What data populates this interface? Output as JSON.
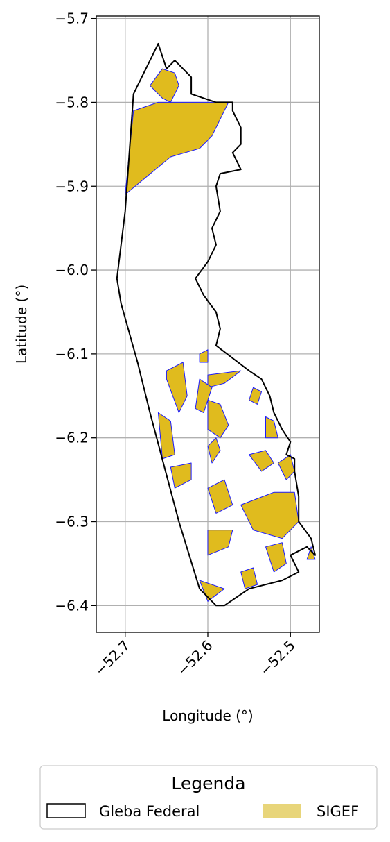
{
  "chart_data": {
    "type": "map",
    "xlabel": "Longitude (°)",
    "ylabel": "Latitude (°)",
    "xlim": [
      -52.735,
      -52.465
    ],
    "ylim": [
      -6.432,
      -5.697
    ],
    "xticks": [
      {
        "value": -52.7,
        "label": "−52.7"
      },
      {
        "value": -52.6,
        "label": "−52.6"
      },
      {
        "value": -52.5,
        "label": "−52.5"
      }
    ],
    "yticks": [
      {
        "value": -5.7,
        "label": "−5.7"
      },
      {
        "value": -5.8,
        "label": "−5.8"
      },
      {
        "value": -5.9,
        "label": "−5.9"
      },
      {
        "value": -6.0,
        "label": "−6.0"
      },
      {
        "value": -6.1,
        "label": "−6.1"
      },
      {
        "value": -6.2,
        "label": "−6.2"
      },
      {
        "value": -6.3,
        "label": "−6.3"
      },
      {
        "value": -6.4,
        "label": "−6.4"
      }
    ],
    "grid": true,
    "legend": {
      "title": "Legenda",
      "placement": "bottom-center",
      "entries": [
        {
          "label": "Gleba Federal",
          "style": "outline",
          "edge": "#000000",
          "fill": "#ffffff"
        },
        {
          "label": "SIGEF",
          "style": "filled",
          "fill": "#e8d57a"
        }
      ]
    },
    "colors": {
      "sigef_fill": "#e0bb1e",
      "sigef_edge": "#1a1aff",
      "boundary": "#000000",
      "grid": "#b0b0b0"
    },
    "layers": [
      {
        "name": "Gleba Federal",
        "type": "polygon-outline",
        "coordinates": [
          [
            -52.66,
            -5.73
          ],
          [
            -52.65,
            -5.76
          ],
          [
            -52.64,
            -5.75
          ],
          [
            -52.63,
            -5.76
          ],
          [
            -52.62,
            -5.77
          ],
          [
            -52.62,
            -5.79
          ],
          [
            -52.59,
            -5.8
          ],
          [
            -52.57,
            -5.8
          ],
          [
            -52.57,
            -5.81
          ],
          [
            -52.56,
            -5.83
          ],
          [
            -52.56,
            -5.85
          ],
          [
            -52.57,
            -5.86
          ],
          [
            -52.56,
            -5.88
          ],
          [
            -52.585,
            -5.885
          ],
          [
            -52.59,
            -5.9
          ],
          [
            -52.585,
            -5.93
          ],
          [
            -52.595,
            -5.95
          ],
          [
            -52.59,
            -5.97
          ],
          [
            -52.6,
            -5.99
          ],
          [
            -52.615,
            -6.01
          ],
          [
            -52.605,
            -6.03
          ],
          [
            -52.59,
            -6.05
          ],
          [
            -52.585,
            -6.07
          ],
          [
            -52.59,
            -6.09
          ],
          [
            -52.55,
            -6.12
          ],
          [
            -52.535,
            -6.13
          ],
          [
            -52.525,
            -6.15
          ],
          [
            -52.52,
            -6.17
          ],
          [
            -52.51,
            -6.19
          ],
          [
            -52.5,
            -6.205
          ],
          [
            -52.505,
            -6.22
          ],
          [
            -52.495,
            -6.225
          ],
          [
            -52.495,
            -6.24
          ],
          [
            -52.49,
            -6.27
          ],
          [
            -52.49,
            -6.3
          ],
          [
            -52.475,
            -6.32
          ],
          [
            -52.47,
            -6.34
          ],
          [
            -52.48,
            -6.33
          ],
          [
            -52.5,
            -6.34
          ],
          [
            -52.49,
            -6.36
          ],
          [
            -52.51,
            -6.37
          ],
          [
            -52.55,
            -6.38
          ],
          [
            -52.58,
            -6.4
          ],
          [
            -52.59,
            -6.4
          ],
          [
            -52.61,
            -6.38
          ],
          [
            -52.635,
            -6.3
          ],
          [
            -52.67,
            -6.17
          ],
          [
            -52.685,
            -6.11
          ],
          [
            -52.705,
            -6.04
          ],
          [
            -52.71,
            -6.01
          ],
          [
            -52.7,
            -5.93
          ],
          [
            -52.69,
            -5.79
          ],
          [
            -52.66,
            -5.73
          ]
        ]
      },
      {
        "name": "SIGEF",
        "type": "parcels",
        "parcels": [
          {
            "id": "n1",
            "coordinates": [
              [
                -52.7,
                -5.91
              ],
              [
                -52.69,
                -5.81
              ],
              [
                -52.66,
                -5.8
              ],
              [
                -52.63,
                -5.8
              ],
              [
                -52.6,
                -5.8
              ],
              [
                -52.575,
                -5.8
              ],
              [
                -52.595,
                -5.84
              ],
              [
                -52.61,
                -5.855
              ],
              [
                -52.645,
                -5.865
              ],
              [
                -52.7,
                -5.91
              ]
            ]
          },
          {
            "id": "n2",
            "coordinates": [
              [
                -52.67,
                -5.78
              ],
              [
                -52.655,
                -5.76
              ],
              [
                -52.64,
                -5.765
              ],
              [
                -52.635,
                -5.78
              ],
              [
                -52.645,
                -5.8
              ],
              [
                -52.655,
                -5.795
              ],
              [
                -52.67,
                -5.78
              ]
            ]
          },
          {
            "id": "s1",
            "coordinates": [
              [
                -52.65,
                -6.12
              ],
              [
                -52.63,
                -6.11
              ],
              [
                -52.625,
                -6.15
              ],
              [
                -52.635,
                -6.17
              ],
              [
                -52.65,
                -6.13
              ],
              [
                -52.65,
                -6.12
              ]
            ]
          },
          {
            "id": "s2",
            "coordinates": [
              [
                -52.61,
                -6.1
              ],
              [
                -52.6,
                -6.095
              ],
              [
                -52.6,
                -6.11
              ],
              [
                -52.61,
                -6.11
              ],
              [
                -52.61,
                -6.1
              ]
            ]
          },
          {
            "id": "s3",
            "coordinates": [
              [
                -52.6,
                -6.125
              ],
              [
                -52.56,
                -6.12
              ],
              [
                -52.58,
                -6.135
              ],
              [
                -52.6,
                -6.14
              ],
              [
                -52.6,
                -6.125
              ]
            ]
          },
          {
            "id": "s4",
            "coordinates": [
              [
                -52.61,
                -6.13
              ],
              [
                -52.595,
                -6.14
              ],
              [
                -52.605,
                -6.17
              ],
              [
                -52.615,
                -6.165
              ],
              [
                -52.61,
                -6.13
              ]
            ]
          },
          {
            "id": "s5",
            "coordinates": [
              [
                -52.6,
                -6.155
              ],
              [
                -52.585,
                -6.16
              ],
              [
                -52.575,
                -6.185
              ],
              [
                -52.585,
                -6.2
              ],
              [
                -52.6,
                -6.19
              ],
              [
                -52.6,
                -6.155
              ]
            ]
          },
          {
            "id": "s6",
            "coordinates": [
              [
                -52.66,
                -6.17
              ],
              [
                -52.645,
                -6.18
              ],
              [
                -52.64,
                -6.22
              ],
              [
                -52.655,
                -6.225
              ],
              [
                -52.66,
                -6.17
              ]
            ]
          },
          {
            "id": "s7",
            "coordinates": [
              [
                -52.6,
                -6.21
              ],
              [
                -52.59,
                -6.2
              ],
              [
                -52.585,
                -6.215
              ],
              [
                -52.595,
                -6.23
              ],
              [
                -52.6,
                -6.21
              ]
            ]
          },
          {
            "id": "s8",
            "coordinates": [
              [
                -52.645,
                -6.235
              ],
              [
                -52.62,
                -6.23
              ],
              [
                -52.62,
                -6.25
              ],
              [
                -52.64,
                -6.26
              ],
              [
                -52.645,
                -6.235
              ]
            ]
          },
          {
            "id": "s9",
            "coordinates": [
              [
                -52.545,
                -6.14
              ],
              [
                -52.535,
                -6.145
              ],
              [
                -52.54,
                -6.16
              ],
              [
                -52.55,
                -6.155
              ],
              [
                -52.545,
                -6.14
              ]
            ]
          },
          {
            "id": "s10",
            "coordinates": [
              [
                -52.53,
                -6.175
              ],
              [
                -52.52,
                -6.18
              ],
              [
                -52.515,
                -6.2
              ],
              [
                -52.53,
                -6.2
              ],
              [
                -52.53,
                -6.175
              ]
            ]
          },
          {
            "id": "s11",
            "coordinates": [
              [
                -52.55,
                -6.22
              ],
              [
                -52.53,
                -6.215
              ],
              [
                -52.52,
                -6.23
              ],
              [
                -52.535,
                -6.24
              ],
              [
                -52.55,
                -6.22
              ]
            ]
          },
          {
            "id": "s12",
            "coordinates": [
              [
                -52.6,
                -6.26
              ],
              [
                -52.58,
                -6.25
              ],
              [
                -52.57,
                -6.28
              ],
              [
                -52.59,
                -6.29
              ],
              [
                -52.6,
                -6.26
              ]
            ]
          },
          {
            "id": "s13",
            "coordinates": [
              [
                -52.56,
                -6.28
              ],
              [
                -52.52,
                -6.265
              ],
              [
                -52.495,
                -6.265
              ],
              [
                -52.49,
                -6.3
              ],
              [
                -52.51,
                -6.32
              ],
              [
                -52.545,
                -6.31
              ],
              [
                -52.56,
                -6.28
              ]
            ]
          },
          {
            "id": "s14",
            "coordinates": [
              [
                -52.515,
                -6.23
              ],
              [
                -52.5,
                -6.22
              ],
              [
                -52.495,
                -6.24
              ],
              [
                -52.505,
                -6.25
              ],
              [
                -52.515,
                -6.23
              ]
            ]
          },
          {
            "id": "s15",
            "coordinates": [
              [
                -52.6,
                -6.31
              ],
              [
                -52.57,
                -6.31
              ],
              [
                -52.575,
                -6.33
              ],
              [
                -52.6,
                -6.34
              ],
              [
                -52.6,
                -6.31
              ]
            ]
          },
          {
            "id": "s16",
            "coordinates": [
              [
                -52.61,
                -6.37
              ],
              [
                -52.58,
                -6.38
              ],
              [
                -52.6,
                -6.395
              ],
              [
                -52.61,
                -6.37
              ]
            ]
          },
          {
            "id": "s17",
            "coordinates": [
              [
                -52.53,
                -6.33
              ],
              [
                -52.51,
                -6.325
              ],
              [
                -52.505,
                -6.35
              ],
              [
                -52.52,
                -6.36
              ],
              [
                -52.53,
                -6.33
              ]
            ]
          },
          {
            "id": "s18",
            "coordinates": [
              [
                -52.475,
                -6.33
              ],
              [
                -52.47,
                -6.345
              ],
              [
                -52.48,
                -6.345
              ],
              [
                -52.475,
                -6.33
              ]
            ]
          },
          {
            "id": "s19",
            "coordinates": [
              [
                -52.56,
                -6.36
              ],
              [
                -52.545,
                -6.355
              ],
              [
                -52.54,
                -6.375
              ],
              [
                -52.555,
                -6.38
              ],
              [
                -52.56,
                -6.36
              ]
            ]
          }
        ]
      }
    ]
  }
}
